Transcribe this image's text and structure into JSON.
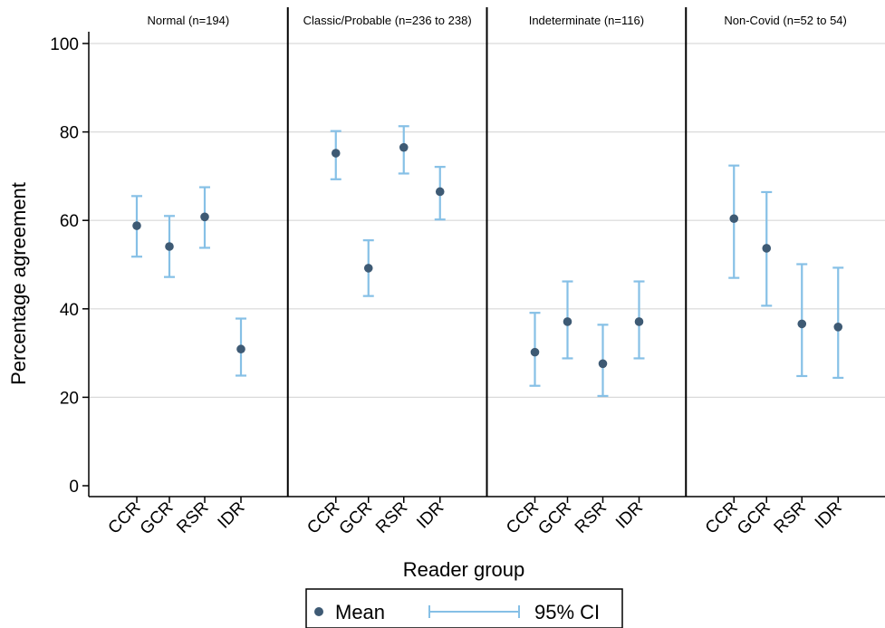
{
  "chart_data": {
    "type": "scatter",
    "subtype": "mean with 95% CI error bars, faceted panels",
    "ylabel": "Percentage agreement",
    "xlabel": "Reader group",
    "ylim": [
      0,
      100
    ],
    "yticks": [
      0,
      20,
      40,
      60,
      80,
      100
    ],
    "grid": true,
    "legend_position": "bottom-center",
    "colors": {
      "mean_marker": "#3e5a74",
      "ci_bar": "#86c0e6",
      "grid": "#d9d9d9",
      "panel_border": "#000000"
    },
    "categories": [
      "CCR",
      "GCR",
      "RSR",
      "IDR"
    ],
    "legend": {
      "mean_label": "Mean",
      "ci_label": "95% CI"
    },
    "panels": [
      {
        "title": "Normal (n=194)",
        "mean": [
          58.8,
          54.1,
          60.8,
          30.9
        ],
        "lower": [
          51.8,
          47.2,
          53.8,
          24.9
        ],
        "upper": [
          65.5,
          61.0,
          67.5,
          37.8
        ]
      },
      {
        "title": "Classic/Probable (n=236 to 238)",
        "mean": [
          75.2,
          49.2,
          76.5,
          66.5
        ],
        "lower": [
          69.3,
          42.9,
          70.6,
          60.2
        ],
        "upper": [
          80.2,
          55.5,
          81.3,
          72.1
        ]
      },
      {
        "title": "Indeterminate (n=116)",
        "mean": [
          30.2,
          37.1,
          27.6,
          37.1
        ],
        "lower": [
          22.6,
          28.8,
          20.3,
          28.8
        ],
        "upper": [
          39.1,
          46.2,
          36.4,
          46.2
        ]
      },
      {
        "title": "Non-Covid (n=52 to 54)",
        "mean": [
          60.4,
          53.7,
          36.6,
          35.9
        ],
        "lower": [
          47.0,
          40.7,
          24.8,
          24.4
        ],
        "upper": [
          72.4,
          66.4,
          50.1,
          49.3
        ]
      }
    ]
  }
}
